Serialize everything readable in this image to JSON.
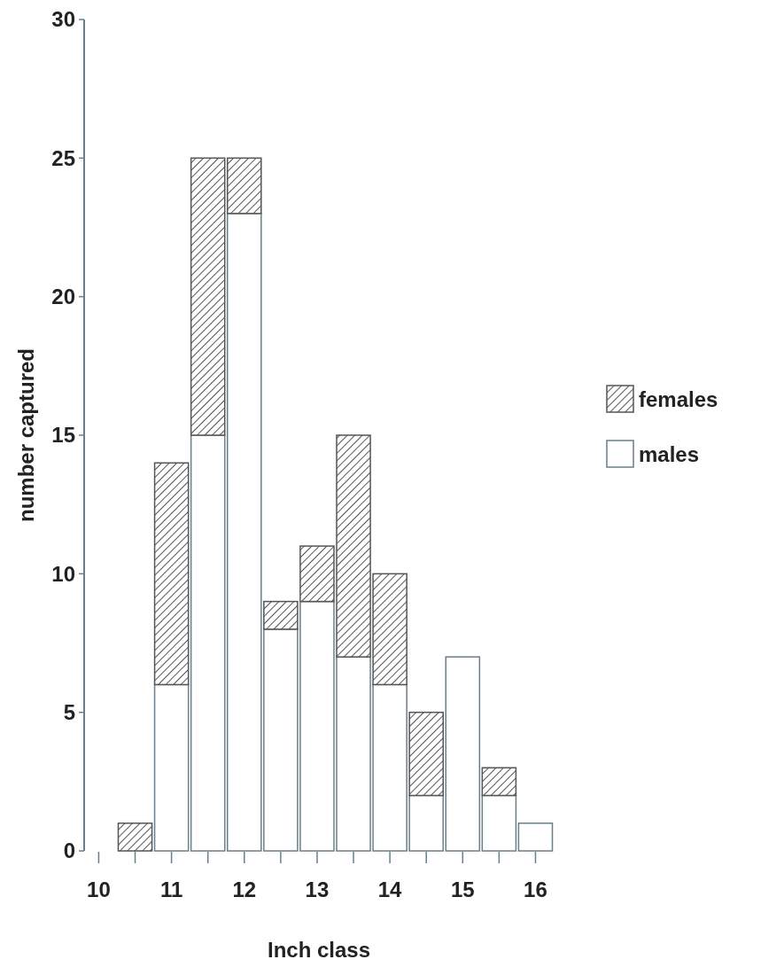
{
  "chart_data": {
    "type": "bar",
    "stacked": true,
    "xlabel": "Inch class",
    "ylabel": "number captured",
    "x": [
      10,
      10.5,
      11,
      11.5,
      12,
      12.5,
      13,
      13.5,
      14,
      14.5,
      15,
      15.5,
      16
    ],
    "series": [
      {
        "name": "males",
        "color": "#ffffff",
        "values": [
          0,
          0,
          6,
          15,
          23,
          8,
          9,
          7,
          6,
          2,
          7,
          2,
          1
        ]
      },
      {
        "name": "females",
        "color": "#555555",
        "values": [
          0,
          1,
          8,
          10,
          2,
          1,
          2,
          8,
          4,
          3,
          0,
          1,
          0
        ]
      }
    ],
    "xlim": [
      9.8,
      16.25
    ],
    "xticks": [
      10,
      {
        "value": 10.5,
        "label": null
      },
      11,
      {
        "value": 11.5,
        "label": null
      },
      12,
      {
        "value": 12.5,
        "label": null
      },
      13,
      {
        "value": 13.5,
        "label": null
      },
      14,
      {
        "value": 14.5,
        "label": null
      },
      15,
      {
        "value": 15.5,
        "label": null
      },
      16
    ],
    "ylim": [
      0,
      30
    ],
    "yticks": [
      0,
      5,
      10,
      15,
      20,
      25,
      30
    ],
    "legend": "right",
    "grid": false
  }
}
